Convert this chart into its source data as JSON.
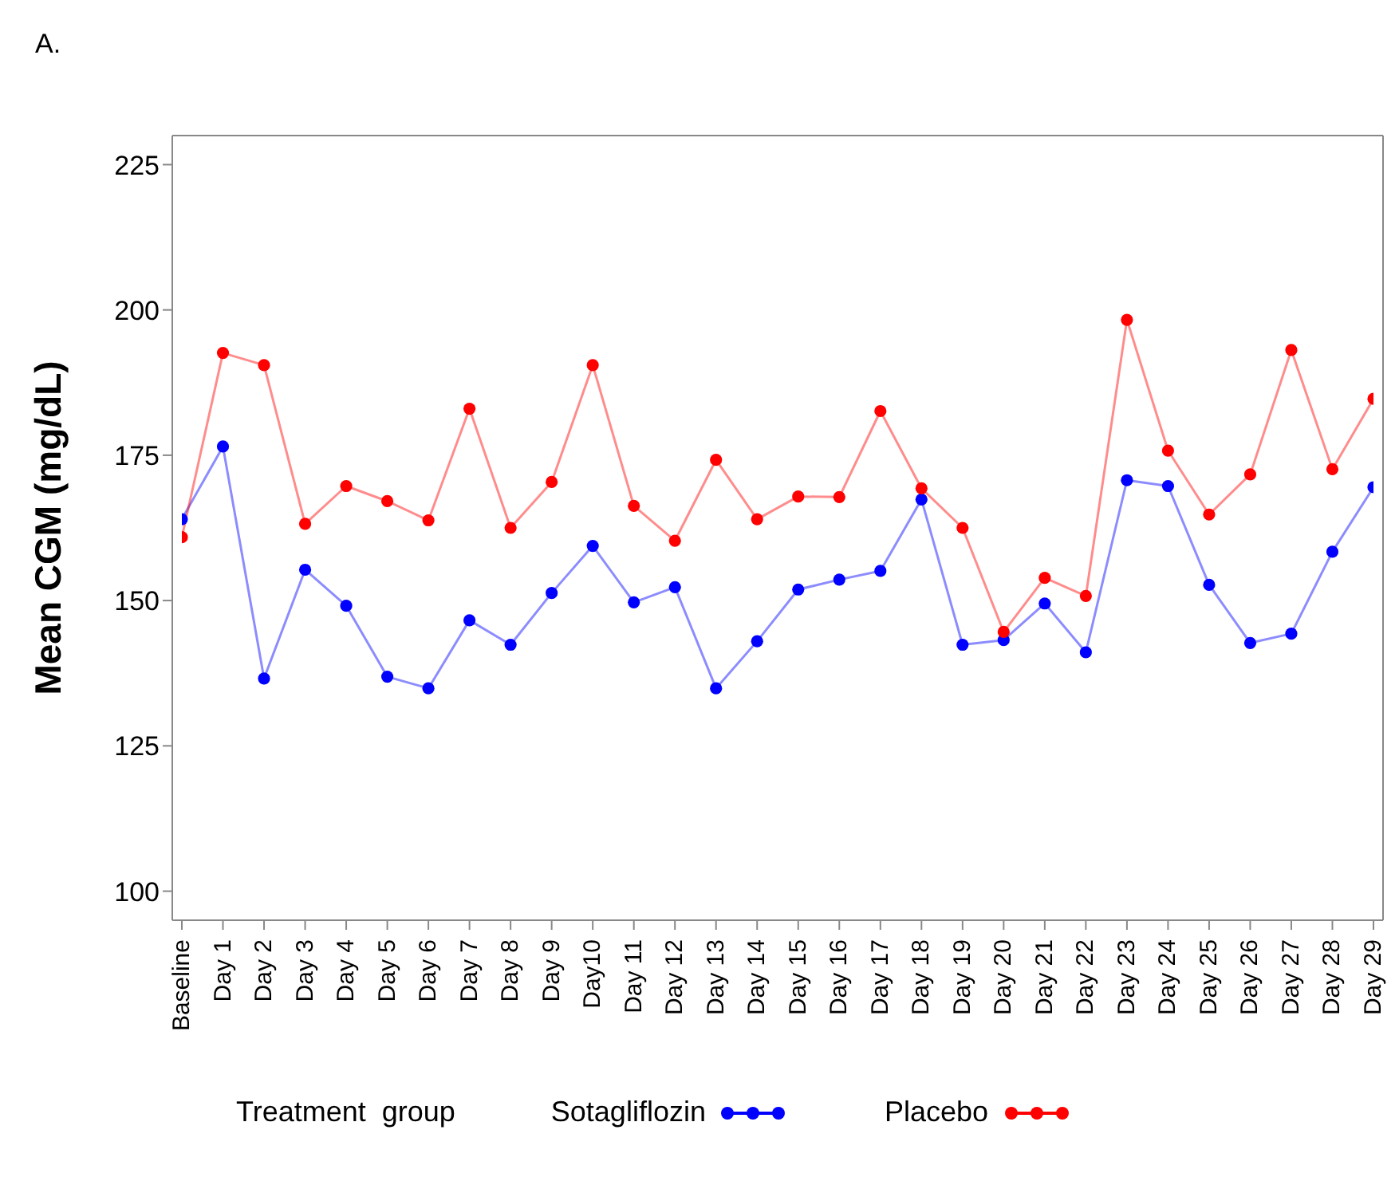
{
  "chart_data": {
    "type": "line",
    "title": "A.",
    "ylabel": "Mean CGM (mg/dL)",
    "legend_title": "Treatment  group",
    "categories": [
      "Baseline",
      "Day 1",
      "Day 2",
      "Day 3",
      "Day 4",
      "Day 5",
      "Day 6",
      "Day 7",
      "Day 8",
      "Day 9",
      "Day10",
      "Day 11",
      "Day 12",
      "Day 13",
      "Day 14",
      "Day 15",
      "Day 16",
      "Day 17",
      "Day 18",
      "Day 19",
      "Day 20",
      "Day 21",
      "Day 22",
      "Day 23",
      "Day 24",
      "Day 25",
      "Day 26",
      "Day 27",
      "Day 28",
      "Day 29"
    ],
    "series": [
      {
        "name": "Sotagliflozin",
        "color": "#0000ff",
        "values": [
          164,
          176.5,
          136.6,
          155.3,
          149.1,
          136.9,
          134.9,
          146.6,
          142.4,
          151.3,
          159.4,
          149.7,
          152.3,
          134.9,
          143,
          151.9,
          153.6,
          155.1,
          167.4,
          142.4,
          143.2,
          149.5,
          141.1,
          170.7,
          169.7,
          152.7,
          142.7,
          144.3,
          158.4,
          169.5
        ]
      },
      {
        "name": "Placebo",
        "color": "#ff0000",
        "values": [
          160.9,
          192.6,
          190.5,
          163.2,
          169.7,
          167.1,
          163.8,
          183,
          162.5,
          170.4,
          190.5,
          166.3,
          160.3,
          174.2,
          164,
          167.9,
          167.8,
          182.6,
          169.3,
          162.5,
          144.6,
          153.9,
          150.8,
          198.3,
          175.8,
          164.8,
          171.7,
          193.1,
          172.6,
          184.7
        ]
      }
    ],
    "ylim": [
      95,
      230
    ],
    "yticks": [
      100,
      125,
      150,
      175,
      200,
      225
    ],
    "grid": false,
    "legend": "bottom",
    "marker": "circle",
    "line_style": "solid"
  }
}
